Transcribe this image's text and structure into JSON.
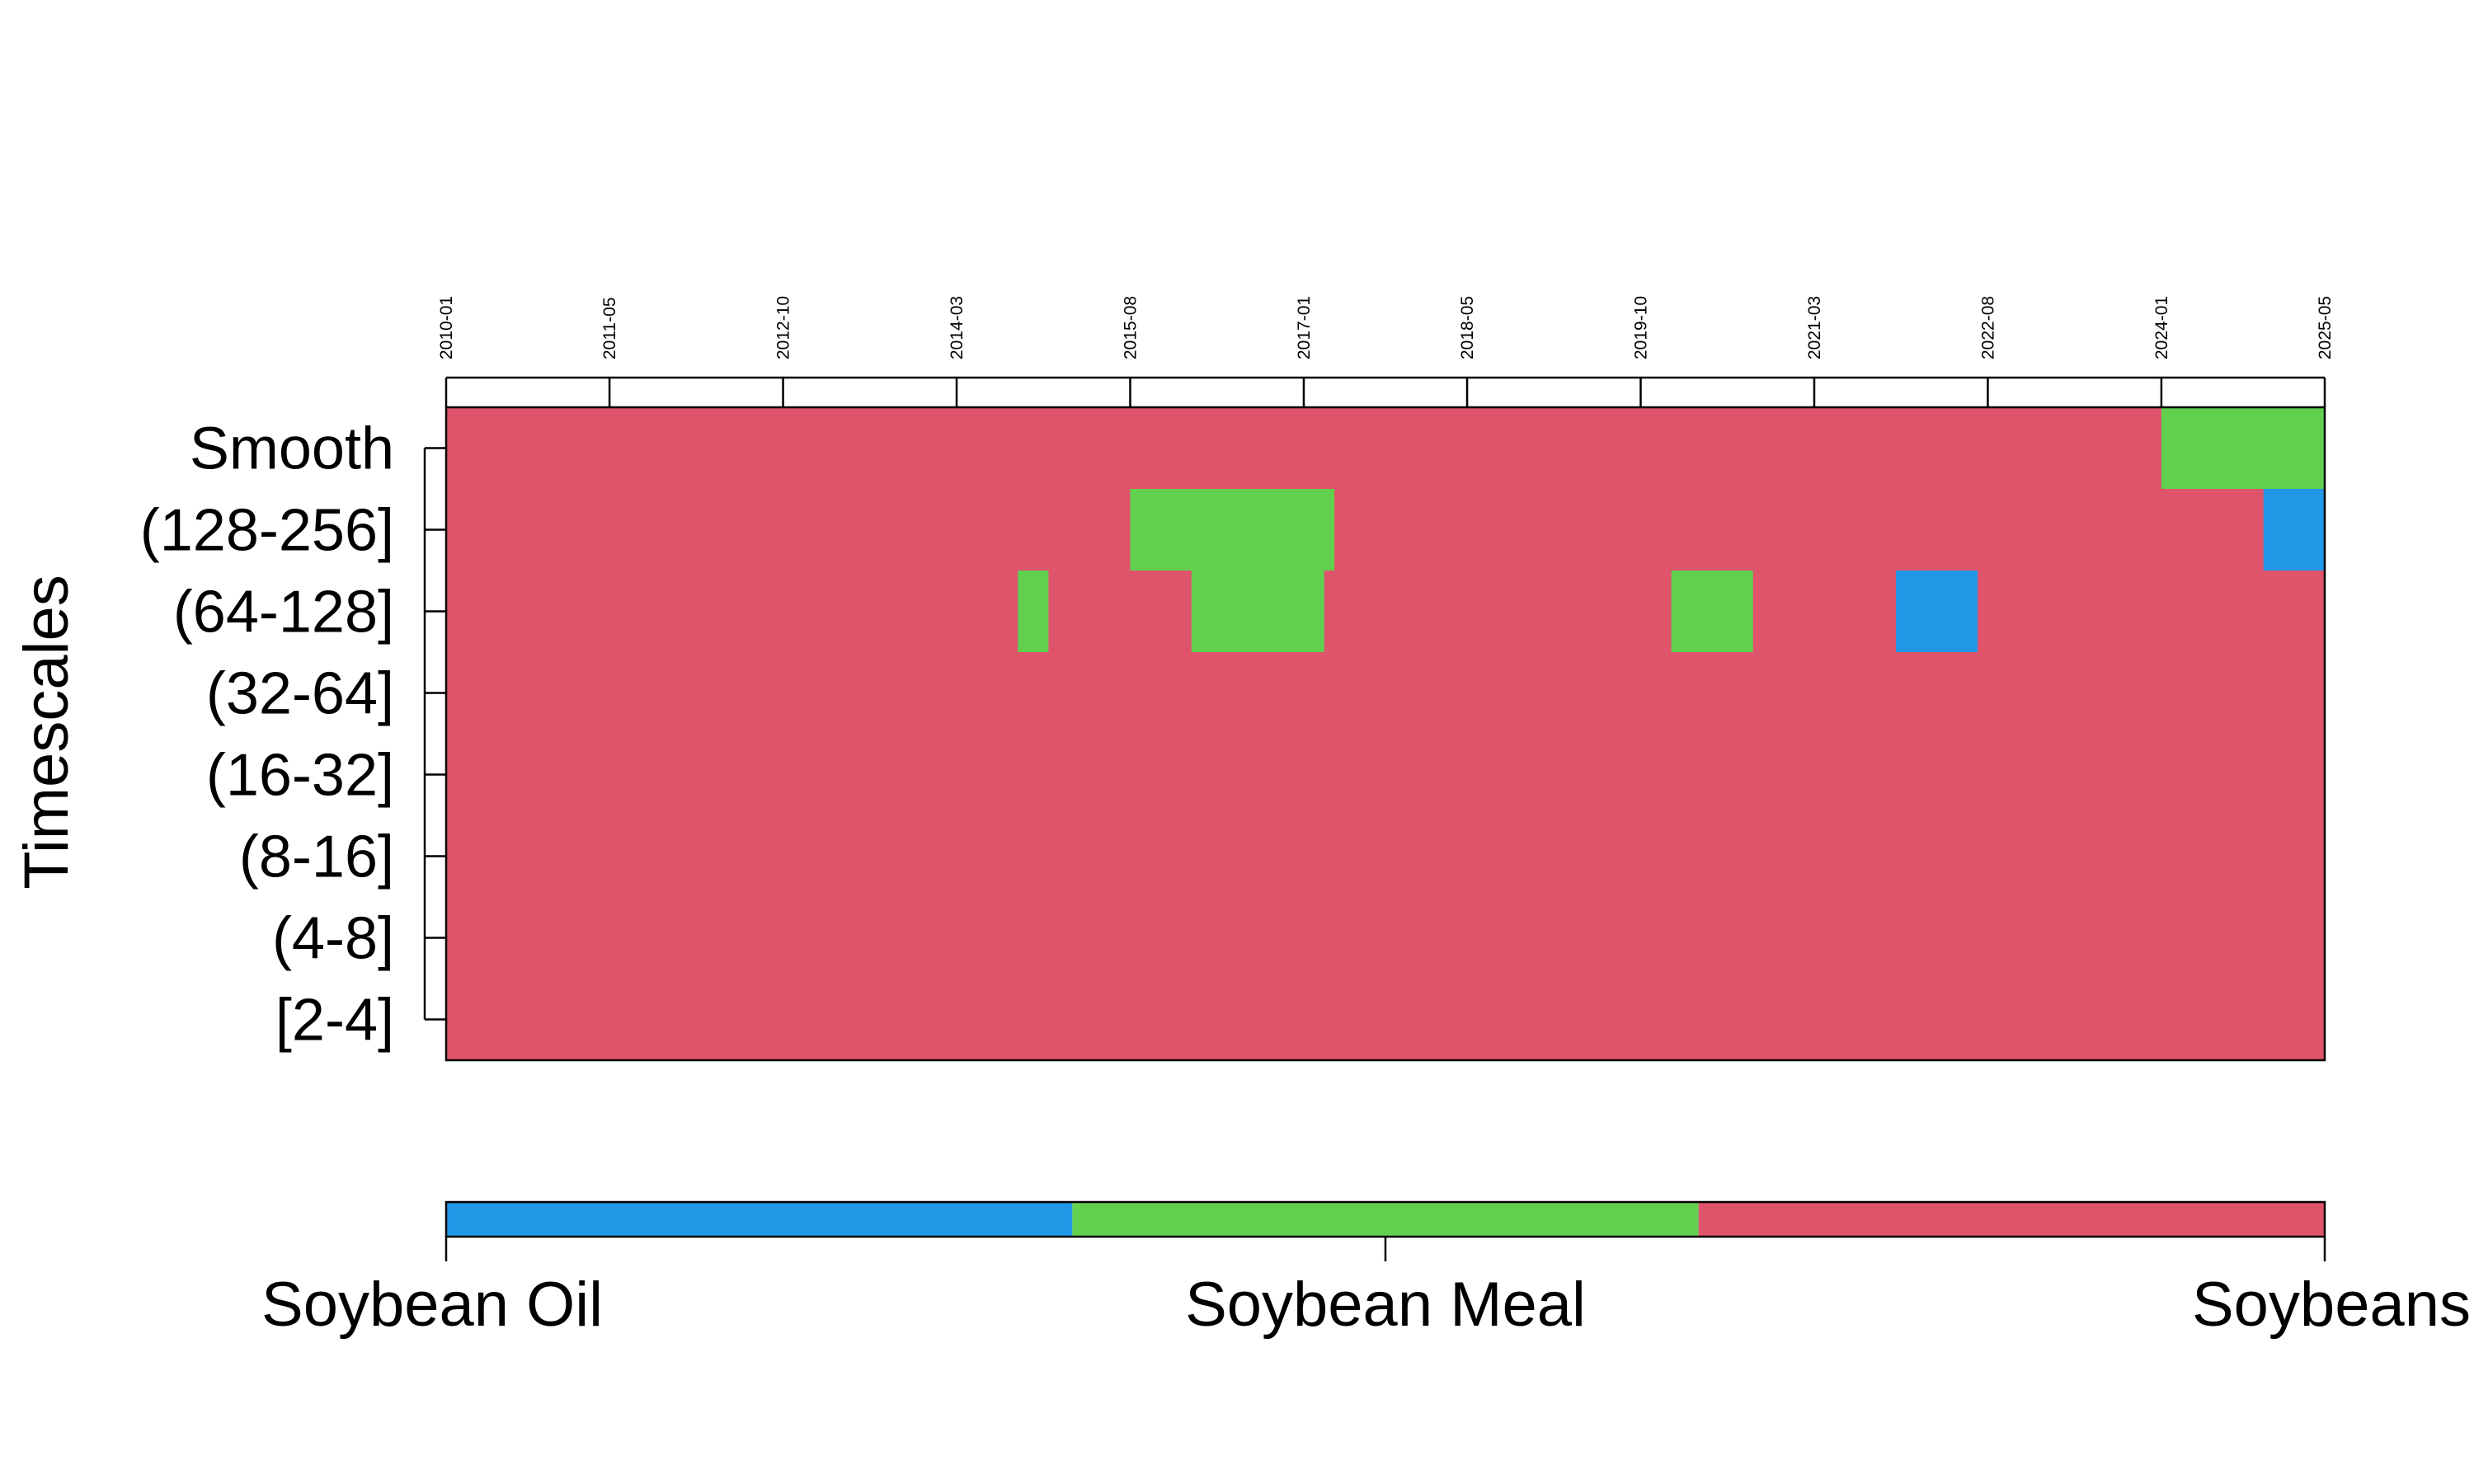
{
  "chart_data": {
    "type": "heatmap",
    "title": "",
    "ylabel": "Timescales",
    "xlabel": "",
    "x_ticks": [
      "2010-01",
      "2011-05",
      "2012-10",
      "2014-03",
      "2015-08",
      "2017-01",
      "2018-05",
      "2019-10",
      "2021-03",
      "2022-08",
      "2024-01",
      "2025-05"
    ],
    "x_range": [
      "2010-01",
      "2025-05"
    ],
    "y_categories": [
      "Smooth",
      "(128-256]",
      "(64-128]",
      "(32-64]",
      "(16-32]",
      "(8-16]",
      "(4-8]",
      "[2-4]"
    ],
    "background_series": "Soybeans",
    "series": [
      {
        "name": "Soybean Oil",
        "color": "#2297E6"
      },
      {
        "name": "Soybean Meal",
        "color": "#61D04F"
      },
      {
        "name": "Soybeans",
        "color": "#DF536B"
      }
    ],
    "cells": [
      {
        "row": "Smooth",
        "start": "2024-01",
        "end": "2025-05",
        "series": "Soybean Meal"
      },
      {
        "row": "(128-256]",
        "start": "2015-08",
        "end": "2017-04",
        "series": "Soybean Meal"
      },
      {
        "row": "(128-256]",
        "start": "2024-11",
        "end": "2025-05",
        "series": "Soybean Oil"
      },
      {
        "row": "(64-128]",
        "start": "2014-09",
        "end": "2014-12",
        "series": "Soybean Meal"
      },
      {
        "row": "(64-128]",
        "start": "2016-02",
        "end": "2017-03",
        "series": "Soybean Meal"
      },
      {
        "row": "(64-128]",
        "start": "2020-01",
        "end": "2020-09",
        "series": "Soybean Meal"
      },
      {
        "row": "(64-128]",
        "start": "2021-11",
        "end": "2022-07",
        "series": "Soybean Oil"
      }
    ],
    "legend": {
      "position": "bottom",
      "labels": [
        "Soybean Oil",
        "Soybean Meal",
        "Soybeans"
      ]
    }
  }
}
